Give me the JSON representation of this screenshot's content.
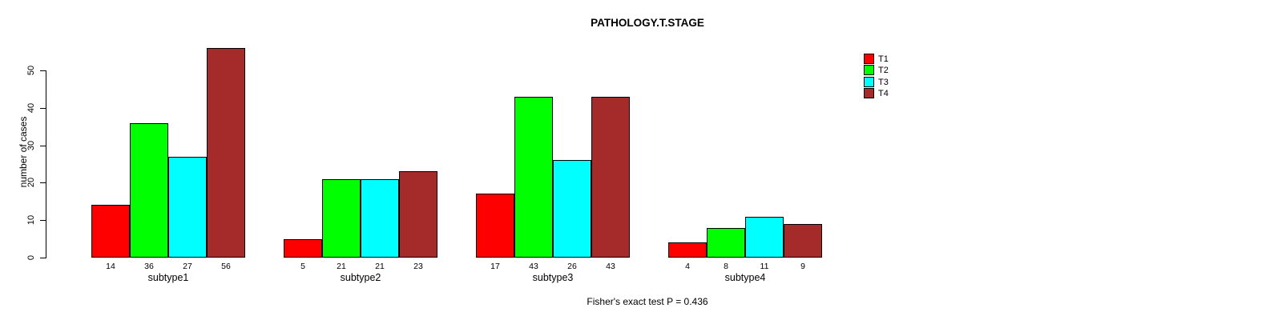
{
  "title": "PATHOLOGY.T.STAGE",
  "ylabel": "number of cases",
  "footer_note": "Fisher's exact test P = 0.436",
  "chart_data": {
    "type": "bar",
    "categories": [
      "subtype1",
      "subtype2",
      "subtype3",
      "subtype4"
    ],
    "series": [
      {
        "name": "T1",
        "color": "#FF0000",
        "values": [
          14,
          5,
          17,
          4
        ]
      },
      {
        "name": "T2",
        "color": "#00FF00",
        "values": [
          36,
          21,
          43,
          8
        ]
      },
      {
        "name": "T3",
        "color": "#00FFFF",
        "values": [
          27,
          21,
          26,
          11
        ]
      },
      {
        "name": "T4",
        "color": "#A52A2A",
        "values": [
          56,
          23,
          43,
          9
        ]
      }
    ],
    "bar_value_labels": [
      [
        14,
        36,
        27,
        56
      ],
      [
        5,
        21,
        21,
        23
      ],
      [
        17,
        43,
        26,
        43
      ],
      [
        4,
        8,
        11,
        9
      ]
    ],
    "yticks": [
      0,
      10,
      20,
      30,
      40,
      50
    ],
    "ylim": [
      0,
      56
    ],
    "grid": "off",
    "legend_position": "right",
    "bar_border_color": "#000000",
    "background_color": "#FFFFFF"
  }
}
